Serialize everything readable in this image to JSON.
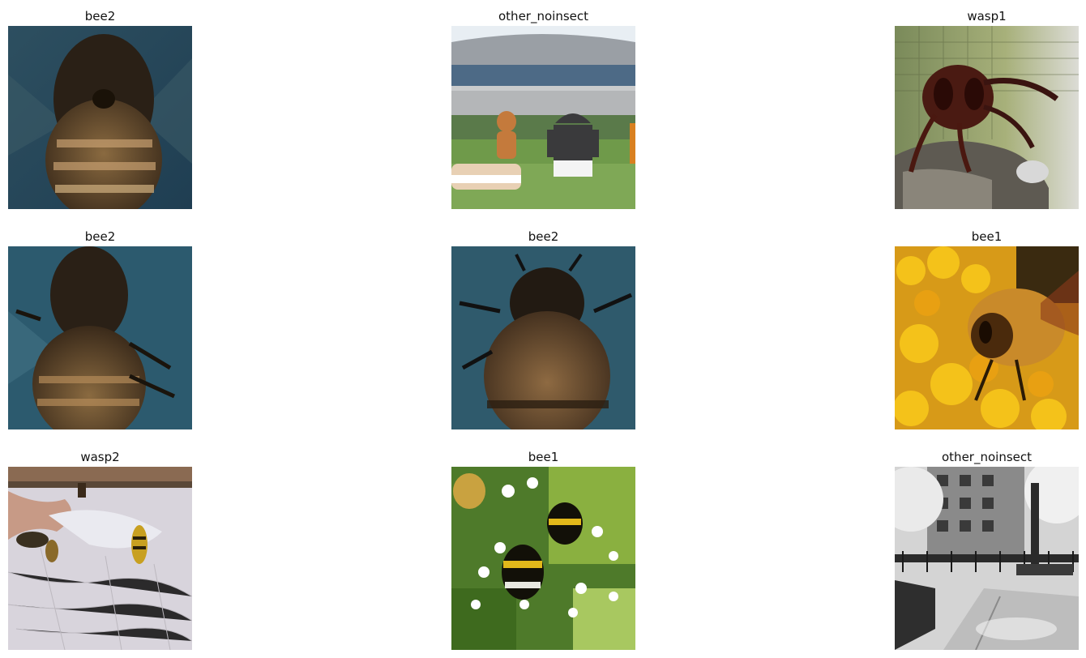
{
  "grid": [
    {
      "title": "bee2",
      "icon": "bee-closeup-blue-photo"
    },
    {
      "title": "other_noinsect",
      "icon": "android-statues-lawn-photo"
    },
    {
      "title": "wasp1",
      "icon": "hornet-on-rock-photo"
    },
    {
      "title": "bee2",
      "icon": "bee-abdomen-blue-photo"
    },
    {
      "title": "bee2",
      "icon": "bee-thorax-blue-photo"
    },
    {
      "title": "bee1",
      "icon": "bee-on-yellow-flower-photo"
    },
    {
      "title": "wasp2",
      "icon": "wasps-in-nest-photo"
    },
    {
      "title": "bee1",
      "icon": "bumblebees-white-flowers-photo"
    },
    {
      "title": "other_noinsect",
      "icon": "park-bench-bw-photo"
    }
  ]
}
